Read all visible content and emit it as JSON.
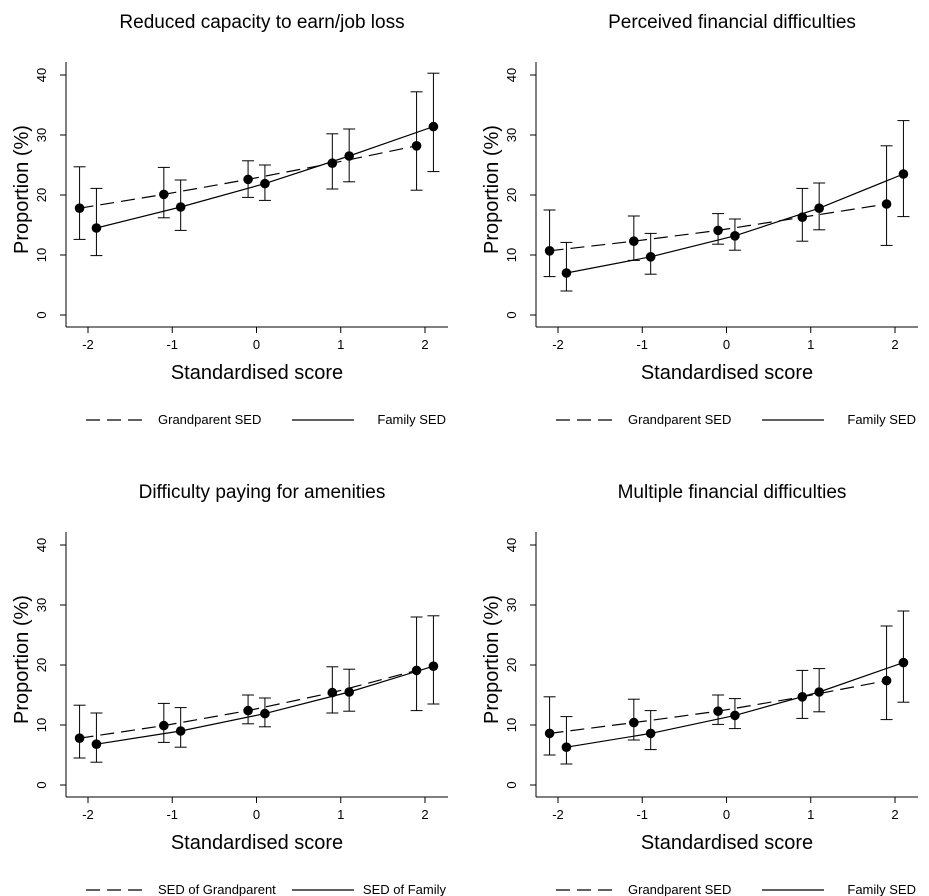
{
  "figure": {
    "panels": [
      {
        "title": "Reduced capacity to earn/job loss",
        "legend": [
          "Grandparent SED",
          "Family SED"
        ]
      },
      {
        "title": "Perceived financial difficulties",
        "legend": [
          "Grandparent SED",
          "Family SED"
        ]
      },
      {
        "title": "Difficulty paying for amenities",
        "legend": [
          "SED of Grandparent",
          "SED of Family"
        ]
      },
      {
        "title": "Multiple financial difficulties",
        "legend": [
          "Grandparent SED",
          "Family SED"
        ]
      }
    ]
  },
  "chart_data": [
    {
      "type": "line",
      "title": "Reduced capacity to earn/job loss",
      "xlabel": "Standardised score",
      "ylabel": "Proportion (%)",
      "xlim": [
        -2.2,
        2.2
      ],
      "ylim": [
        0,
        40
      ],
      "xticks": [
        -2,
        -1,
        0,
        1,
        2
      ],
      "yticks": [
        0,
        10,
        20,
        30,
        40
      ],
      "grid": false,
      "legend_position": "bottom",
      "series": [
        {
          "name": "Grandparent SED",
          "style": "dashed",
          "x": [
            -2,
            -1,
            0,
            1,
            2
          ],
          "y": [
            17.8,
            20.1,
            22.6,
            25.3,
            28.2
          ],
          "lower": [
            12.6,
            16.2,
            19.6,
            21.0,
            20.8
          ],
          "upper": [
            24.7,
            24.6,
            25.7,
            30.2,
            37.2
          ]
        },
        {
          "name": "Family SED",
          "style": "solid",
          "x": [
            -2,
            -1,
            0,
            1,
            2
          ],
          "y": [
            14.5,
            18.0,
            21.9,
            26.5,
            31.4
          ],
          "lower": [
            9.9,
            14.1,
            19.1,
            22.2,
            23.9
          ],
          "upper": [
            21.1,
            22.5,
            25.0,
            31.0,
            40.3
          ]
        }
      ]
    },
    {
      "type": "line",
      "title": "Perceived financial difficulties",
      "xlabel": "Standardised score",
      "ylabel": "Proportion (%)",
      "xlim": [
        -2.2,
        2.2
      ],
      "ylim": [
        0,
        40
      ],
      "xticks": [
        -2,
        -1,
        0,
        1,
        2
      ],
      "yticks": [
        0,
        10,
        20,
        30,
        40
      ],
      "grid": false,
      "legend_position": "bottom",
      "series": [
        {
          "name": "Grandparent SED",
          "style": "dashed",
          "x": [
            -2,
            -1,
            0,
            1,
            2
          ],
          "y": [
            10.7,
            12.3,
            14.1,
            16.3,
            18.5
          ],
          "lower": [
            6.4,
            9.1,
            11.8,
            12.3,
            11.6
          ],
          "upper": [
            17.5,
            16.5,
            16.9,
            21.1,
            28.2
          ]
        },
        {
          "name": "Family SED",
          "style": "solid",
          "x": [
            -2,
            -1,
            0,
            1,
            2
          ],
          "y": [
            7.0,
            9.7,
            13.2,
            17.8,
            23.5
          ],
          "lower": [
            4.0,
            6.8,
            10.8,
            14.2,
            16.4
          ],
          "upper": [
            12.1,
            13.6,
            16.0,
            22.0,
            32.4
          ]
        }
      ]
    },
    {
      "type": "line",
      "title": "Difficulty paying for amenities",
      "xlabel": "Standardised score",
      "ylabel": "Proportion (%)",
      "xlim": [
        -2.2,
        2.2
      ],
      "ylim": [
        0,
        40
      ],
      "xticks": [
        -2,
        -1,
        0,
        1,
        2
      ],
      "yticks": [
        0,
        10,
        20,
        30,
        40
      ],
      "grid": false,
      "legend_position": "bottom",
      "series": [
        {
          "name": "SED of Grandparent",
          "style": "dashed",
          "x": [
            -2,
            -1,
            0,
            1,
            2
          ],
          "y": [
            7.8,
            9.9,
            12.4,
            15.4,
            19.1
          ],
          "lower": [
            4.5,
            7.1,
            10.2,
            12.0,
            12.4
          ],
          "upper": [
            13.3,
            13.6,
            15.0,
            19.7,
            28.0
          ]
        },
        {
          "name": "SED of Family",
          "style": "solid",
          "x": [
            -2,
            -1,
            0,
            1,
            2
          ],
          "y": [
            6.8,
            9.0,
            11.9,
            15.5,
            19.8
          ],
          "lower": [
            3.8,
            6.3,
            9.7,
            12.3,
            13.5
          ],
          "upper": [
            12.0,
            12.9,
            14.5,
            19.3,
            28.2
          ]
        }
      ]
    },
    {
      "type": "line",
      "title": "Multiple financial difficulties",
      "xlabel": "Standardised score",
      "ylabel": "Proportion (%)",
      "xlim": [
        -2.2,
        2.2
      ],
      "ylim": [
        0,
        40
      ],
      "xticks": [
        -2,
        -1,
        0,
        1,
        2
      ],
      "yticks": [
        0,
        10,
        20,
        30,
        40
      ],
      "grid": false,
      "legend_position": "bottom",
      "series": [
        {
          "name": "Grandparent SED",
          "style": "dashed",
          "x": [
            -2,
            -1,
            0,
            1,
            2
          ],
          "y": [
            8.6,
            10.4,
            12.3,
            14.7,
            17.4
          ],
          "lower": [
            5.0,
            7.5,
            10.1,
            11.1,
            10.9
          ],
          "upper": [
            14.7,
            14.3,
            15.0,
            19.1,
            26.5
          ]
        },
        {
          "name": "Family SED",
          "style": "solid",
          "x": [
            -2,
            -1,
            0,
            1,
            2
          ],
          "y": [
            6.3,
            8.6,
            11.6,
            15.5,
            20.4
          ],
          "lower": [
            3.5,
            5.9,
            9.4,
            12.2,
            13.8
          ],
          "upper": [
            11.4,
            12.4,
            14.4,
            19.4,
            29.0
          ]
        }
      ]
    }
  ]
}
